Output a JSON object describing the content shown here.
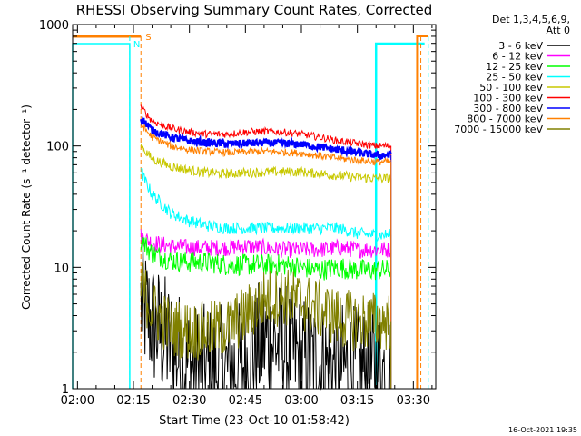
{
  "chart_data": {
    "type": "line",
    "title": "RHESSI Observing Summary Count Rates, Corrected",
    "xlabel": "Start Time (23-Oct-10 01:58:42)",
    "ylabel": "Corrected Count Rate (s⁻¹ detector⁻¹)",
    "yscale": "log",
    "xlim": [
      "01:58:42",
      "03:36:00"
    ],
    "ylim": [
      1,
      1000
    ],
    "x_ticks": [
      "02:00",
      "02:15",
      "02:30",
      "02:45",
      "03:00",
      "03:15",
      "03:30"
    ],
    "y_ticks": [
      "1",
      "10",
      "100",
      "1000"
    ],
    "legend": {
      "placement": "right",
      "header": [
        "Det 1,3,4,5,6,9,",
        "Att 0"
      ]
    },
    "timestamp": "16-Oct-2021 19:35",
    "flags": [
      {
        "label": "S",
        "color": "#ff8000"
      },
      {
        "label": "N",
        "color": "#00ffff"
      }
    ],
    "series": [
      {
        "name": "3 - 6 keV",
        "color": "#000000",
        "x": [
          "02:17",
          "02:20",
          "02:25",
          "02:30",
          "02:35",
          "02:40",
          "02:45",
          "02:50",
          "02:55",
          "03:00",
          "03:05",
          "03:10",
          "03:15",
          "03:20",
          "03:24"
        ],
        "values": [
          5,
          3.5,
          2.2,
          1.5,
          1.4,
          1.4,
          1.6,
          2.5,
          2.2,
          1.7,
          1.6,
          1.5,
          1.4,
          1.4,
          1.4
        ]
      },
      {
        "name": "6 - 12 keV",
        "color": "#ff00ff",
        "x": [
          "02:17",
          "02:20",
          "02:25",
          "02:30",
          "02:35",
          "02:40",
          "02:45",
          "02:50",
          "02:55",
          "03:00",
          "03:05",
          "03:10",
          "03:15",
          "03:20",
          "03:24"
        ],
        "values": [
          18,
          16,
          15,
          14.5,
          14.5,
          14.5,
          15,
          14.5,
          14,
          14,
          14,
          14.5,
          14,
          14,
          14
        ]
      },
      {
        "name": "12 - 25 keV",
        "color": "#00ff00",
        "x": [
          "02:17",
          "02:20",
          "02:25",
          "02:30",
          "02:35",
          "02:40",
          "02:45",
          "02:50",
          "02:55",
          "03:00",
          "03:05",
          "03:10",
          "03:15",
          "03:20",
          "03:24"
        ],
        "values": [
          17,
          13,
          11.5,
          11,
          11,
          10.5,
          10.5,
          10.5,
          10.5,
          10,
          9.5,
          10,
          9.5,
          9.5,
          9.5
        ]
      },
      {
        "name": "25 - 50 keV",
        "color": "#00ffff",
        "x": [
          "02:17",
          "02:20",
          "02:25",
          "02:30",
          "02:35",
          "02:40",
          "02:45",
          "02:50",
          "02:55",
          "03:00",
          "03:05",
          "03:10",
          "03:15",
          "03:20",
          "03:24"
        ],
        "values": [
          60,
          40,
          28,
          24,
          22,
          21,
          21,
          21,
          21,
          21,
          21,
          21,
          19,
          18.5,
          18.5
        ]
      },
      {
        "name": "50 - 100 keV",
        "color": "#c8c800",
        "x": [
          "02:17",
          "02:20",
          "02:25",
          "02:30",
          "02:35",
          "02:40",
          "02:45",
          "02:50",
          "02:55",
          "03:00",
          "03:05",
          "03:10",
          "03:15",
          "03:20",
          "03:24"
        ],
        "values": [
          100,
          78,
          68,
          63,
          60,
          59,
          60,
          61,
          61,
          61,
          59,
          57,
          55,
          54,
          54
        ]
      },
      {
        "name": "100 - 300 keV",
        "color": "#ff0000",
        "x": [
          "02:17",
          "02:20",
          "02:25",
          "02:30",
          "02:35",
          "02:40",
          "02:45",
          "02:50",
          "02:55",
          "03:00",
          "03:05",
          "03:10",
          "03:15",
          "03:20",
          "03:24"
        ],
        "values": [
          210,
          160,
          140,
          130,
          125,
          125,
          130,
          132,
          130,
          125,
          118,
          110,
          105,
          100,
          100
        ]
      },
      {
        "name": "300 - 800 keV",
        "color": "#0000ff",
        "x": [
          "02:17",
          "02:20",
          "02:25",
          "02:30",
          "02:35",
          "02:40",
          "02:45",
          "02:50",
          "02:55",
          "03:00",
          "03:05",
          "03:10",
          "03:15",
          "03:20",
          "03:24"
        ],
        "values": [
          170,
          135,
          118,
          110,
          106,
          104,
          105,
          106,
          105,
          103,
          98,
          93,
          88,
          84,
          84
        ]
      },
      {
        "name": "800 - 7000 keV",
        "color": "#ff8000",
        "x": [
          "02:17",
          "02:20",
          "02:25",
          "02:30",
          "02:35",
          "02:40",
          "02:45",
          "02:50",
          "02:55",
          "03:00",
          "03:05",
          "03:10",
          "03:15",
          "03:20",
          "03:24"
        ],
        "values": [
          150,
          118,
          100,
          93,
          90,
          88,
          89,
          90,
          89,
          87,
          83,
          79,
          76,
          74,
          74
        ]
      },
      {
        "name": "7000 - 15000 keV",
        "color": "#808000",
        "x": [
          "02:17",
          "02:20",
          "02:25",
          "02:30",
          "02:35",
          "02:40",
          "02:45",
          "02:50",
          "02:55",
          "03:00",
          "03:05",
          "03:10",
          "03:15",
          "03:20",
          "03:24"
        ],
        "values": [
          7,
          4.5,
          3.2,
          3.0,
          3.0,
          3.2,
          4.0,
          5.5,
          5.8,
          5.2,
          4.5,
          3.8,
          3.6,
          3.6,
          3.6
        ]
      }
    ]
  }
}
